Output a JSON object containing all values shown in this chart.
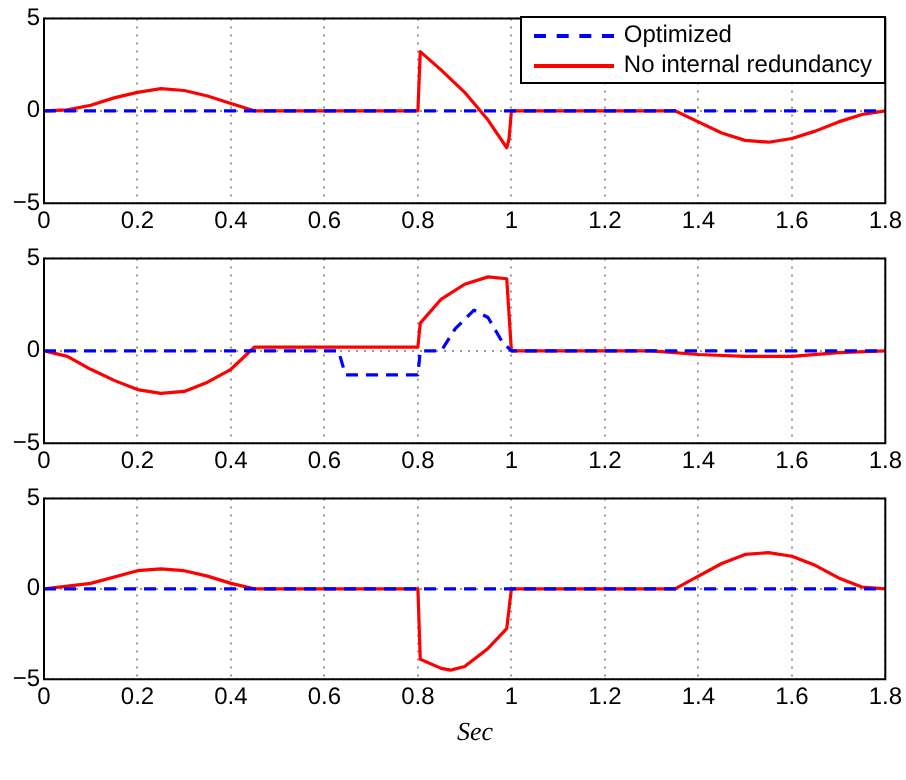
{
  "chart_data": [
    {
      "type": "line",
      "xlim": [
        0,
        1.8
      ],
      "xticks": [
        0,
        0.2,
        0.4,
        0.6,
        0.8,
        1,
        1.2,
        1.4,
        1.6,
        1.8
      ],
      "ylim": [
        -5,
        5
      ],
      "yticks": [
        -5,
        0,
        5
      ],
      "grid": true,
      "legend": "top right",
      "marker": "none",
      "series": [
        {
          "name": "Optimized",
          "color": "#0000ff",
          "line_style": "dashed",
          "x": [
            0,
            1.8
          ],
          "values": [
            0,
            0
          ]
        },
        {
          "name": "No internal redundancy",
          "color": "#ff0000",
          "line_style": "solid",
          "x": [
            0,
            0.05,
            0.1,
            0.15,
            0.2,
            0.25,
            0.3,
            0.35,
            0.4,
            0.45,
            0.8,
            0.805,
            0.85,
            0.9,
            0.95,
            0.99,
            0.995,
            1.0,
            1.35,
            1.4,
            1.45,
            1.5,
            1.55,
            1.6,
            1.65,
            1.7,
            1.75,
            1.8
          ],
          "values": [
            0,
            0.05,
            0.3,
            0.7,
            1.0,
            1.2,
            1.1,
            0.8,
            0.4,
            0,
            0,
            3.2,
            2.2,
            1.0,
            -0.5,
            -2.0,
            -1.5,
            0,
            0,
            -0.6,
            -1.2,
            -1.6,
            -1.7,
            -1.5,
            -1.1,
            -0.6,
            -0.2,
            0
          ]
        }
      ]
    },
    {
      "type": "line",
      "xlim": [
        0,
        1.8
      ],
      "xticks": [
        0,
        0.2,
        0.4,
        0.6,
        0.8,
        1,
        1.2,
        1.4,
        1.6,
        1.8
      ],
      "ylim": [
        -5,
        5
      ],
      "yticks": [
        -5,
        0,
        5
      ],
      "grid": true,
      "marker": "none",
      "series": [
        {
          "color": "#0000ff",
          "line_style": "dashed",
          "x": [
            0,
            0.63,
            0.645,
            0.8,
            0.805,
            0.85,
            0.88,
            0.92,
            0.95,
            0.98,
            1.0,
            1.8
          ],
          "values": [
            0,
            0,
            -1.3,
            -1.3,
            0,
            0,
            1.2,
            2.2,
            1.8,
            0.5,
            0,
            0
          ]
        },
        {
          "color": "#ff0000",
          "line_style": "solid",
          "x": [
            0,
            0.05,
            0.1,
            0.15,
            0.2,
            0.25,
            0.3,
            0.35,
            0.4,
            0.45,
            0.8,
            0.805,
            0.85,
            0.9,
            0.95,
            0.99,
            1.0,
            1.3,
            1.4,
            1.5,
            1.6,
            1.7,
            1.8
          ],
          "values": [
            0,
            -0.3,
            -1.0,
            -1.6,
            -2.1,
            -2.3,
            -2.2,
            -1.7,
            -1.0,
            0.2,
            0.2,
            1.5,
            2.8,
            3.6,
            4.0,
            3.9,
            0,
            0,
            -0.2,
            -0.3,
            -0.3,
            -0.1,
            0
          ]
        }
      ]
    },
    {
      "type": "line",
      "xlabel": "Sec",
      "xlim": [
        0,
        1.8
      ],
      "xticks": [
        0,
        0.2,
        0.4,
        0.6,
        0.8,
        1,
        1.2,
        1.4,
        1.6,
        1.8
      ],
      "ylim": [
        -5,
        5
      ],
      "yticks": [
        -5,
        0,
        5
      ],
      "grid": true,
      "marker": "none",
      "series": [
        {
          "color": "#0000ff",
          "line_style": "dashed",
          "x": [
            0,
            1.8
          ],
          "values": [
            0,
            0
          ]
        },
        {
          "color": "#ff0000",
          "line_style": "solid",
          "x": [
            0,
            0.1,
            0.2,
            0.25,
            0.3,
            0.35,
            0.4,
            0.45,
            0.8,
            0.805,
            0.85,
            0.87,
            0.9,
            0.95,
            0.99,
            1.0,
            1.35,
            1.4,
            1.45,
            1.5,
            1.55,
            1.6,
            1.65,
            1.7,
            1.75,
            1.8
          ],
          "values": [
            0,
            0.3,
            1.0,
            1.1,
            1.0,
            0.7,
            0.3,
            0,
            0,
            -3.9,
            -4.4,
            -4.5,
            -4.3,
            -3.3,
            -2.2,
            0,
            0,
            0.7,
            1.4,
            1.9,
            2.0,
            1.8,
            1.3,
            0.6,
            0.1,
            0
          ]
        }
      ]
    }
  ]
}
